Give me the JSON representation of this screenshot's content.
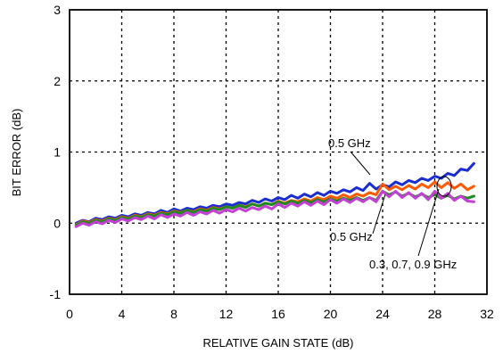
{
  "chart_data": {
    "type": "line",
    "title": "",
    "xlabel": "RELATIVE GAIN STATE (dB)",
    "ylabel": "BIT ERROR (dB)",
    "xlim": [
      0,
      32
    ],
    "ylim": [
      -1,
      3
    ],
    "xticks": [
      "0",
      "4",
      "8",
      "12",
      "16",
      "20",
      "24",
      "28",
      "32"
    ],
    "yticks": [
      "-1",
      "0",
      "1",
      "2",
      "3"
    ],
    "grid": true,
    "annotations": [
      {
        "text": "0.5 GHz"
      },
      {
        "text": "0.5 GHz"
      },
      {
        "text": "0.3, 0.7, 0.9 GHz"
      }
    ],
    "x": [
      0.5,
      1,
      1.5,
      2,
      2.5,
      3,
      3.5,
      4,
      4.5,
      5,
      5.5,
      6,
      6.5,
      7,
      7.5,
      8,
      8.5,
      9,
      9.5,
      10,
      10.5,
      11,
      11.5,
      12,
      12.5,
      13,
      13.5,
      14,
      14.5,
      15,
      15.5,
      16,
      16.5,
      17,
      17.5,
      18,
      18.5,
      19,
      19.5,
      20,
      20.5,
      21,
      21.5,
      22,
      22.5,
      23,
      23.5,
      24,
      24.5,
      25,
      25.5,
      26,
      26.5,
      27,
      27.5,
      28,
      28.5,
      29,
      29.5,
      30,
      30.5,
      31
    ],
    "series": [
      {
        "color": "#1a2ecf",
        "values": [
          0,
          0.04,
          0.02,
          0.07,
          0.05,
          0.09,
          0.07,
          0.11,
          0.09,
          0.13,
          0.11,
          0.15,
          0.13,
          0.18,
          0.15,
          0.2,
          0.17,
          0.21,
          0.19,
          0.23,
          0.21,
          0.25,
          0.23,
          0.27,
          0.25,
          0.29,
          0.27,
          0.32,
          0.29,
          0.34,
          0.31,
          0.36,
          0.33,
          0.39,
          0.35,
          0.41,
          0.37,
          0.43,
          0.39,
          0.45,
          0.42,
          0.47,
          0.44,
          0.5,
          0.46,
          0.56,
          0.48,
          0.54,
          0.51,
          0.58,
          0.54,
          0.6,
          0.57,
          0.63,
          0.6,
          0.66,
          0.63,
          0.7,
          0.67,
          0.76,
          0.74,
          0.84
        ]
      },
      {
        "color": "#ff5a00",
        "values": [
          -0.02,
          0.03,
          0.01,
          0.05,
          0.03,
          0.07,
          0.05,
          0.09,
          0.07,
          0.11,
          0.09,
          0.13,
          0.11,
          0.15,
          0.13,
          0.17,
          0.15,
          0.18,
          0.16,
          0.2,
          0.18,
          0.22,
          0.2,
          0.23,
          0.21,
          0.25,
          0.23,
          0.27,
          0.24,
          0.28,
          0.26,
          0.31,
          0.28,
          0.32,
          0.3,
          0.34,
          0.31,
          0.36,
          0.33,
          0.38,
          0.35,
          0.4,
          0.36,
          0.41,
          0.38,
          0.43,
          0.4,
          0.55,
          0.47,
          0.52,
          0.47,
          0.53,
          0.48,
          0.55,
          0.5,
          0.58,
          0.5,
          0.57,
          0.49,
          0.55,
          0.47,
          0.52
        ]
      },
      {
        "color": "#1e8a1e",
        "values": [
          -0.03,
          0.02,
          0,
          0.04,
          0.02,
          0.06,
          0.04,
          0.08,
          0.06,
          0.1,
          0.08,
          0.12,
          0.1,
          0.14,
          0.12,
          0.16,
          0.14,
          0.18,
          0.15,
          0.19,
          0.17,
          0.21,
          0.19,
          0.23,
          0.21,
          0.25,
          0.22,
          0.27,
          0.24,
          0.28,
          0.26,
          0.3,
          0.27,
          0.31,
          0.28,
          0.32,
          0.29,
          0.33,
          0.3,
          0.34,
          0.31,
          0.35,
          0.32,
          0.36,
          0.32,
          0.36,
          0.32,
          0.45,
          0.4,
          0.44,
          0.38,
          0.42,
          0.37,
          0.41,
          0.36,
          0.4,
          0.35,
          0.39,
          0.34,
          0.38,
          0.35,
          0.38
        ]
      },
      {
        "color": "#c43fd4",
        "values": [
          -0.05,
          0,
          -0.03,
          0.02,
          -0.01,
          0.04,
          0.01,
          0.06,
          0.03,
          0.08,
          0.05,
          0.1,
          0.06,
          0.12,
          0.08,
          0.13,
          0.1,
          0.15,
          0.11,
          0.16,
          0.13,
          0.18,
          0.14,
          0.19,
          0.16,
          0.21,
          0.17,
          0.22,
          0.19,
          0.24,
          0.2,
          0.27,
          0.22,
          0.28,
          0.24,
          0.3,
          0.25,
          0.31,
          0.26,
          0.33,
          0.28,
          0.34,
          0.29,
          0.35,
          0.3,
          0.36,
          0.3,
          0.45,
          0.37,
          0.45,
          0.36,
          0.43,
          0.35,
          0.42,
          0.33,
          0.45,
          0.35,
          0.42,
          0.32,
          0.38,
          0.31,
          0.3
        ]
      }
    ]
  }
}
